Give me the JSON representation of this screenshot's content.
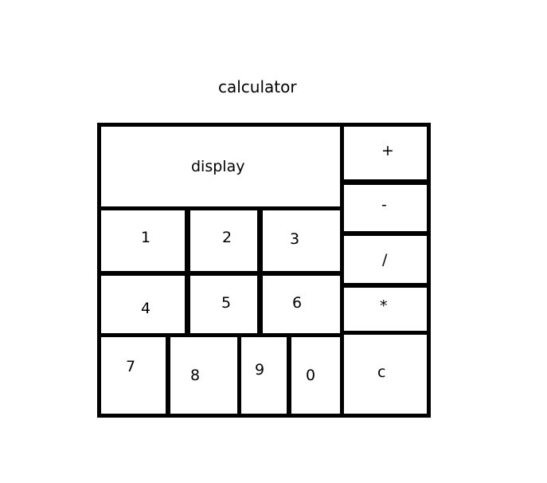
{
  "title": "calculator",
  "display": {
    "label": "display"
  },
  "digit_keys": [
    "1",
    "2",
    "3",
    "4",
    "5",
    "6",
    "7",
    "8",
    "9",
    "0"
  ],
  "operator_keys": {
    "plus": "+",
    "minus": "-",
    "divide": "/",
    "multiply": "*",
    "clear": "c"
  },
  "colors": {
    "stroke": "#000000",
    "background": "#ffffff"
  }
}
